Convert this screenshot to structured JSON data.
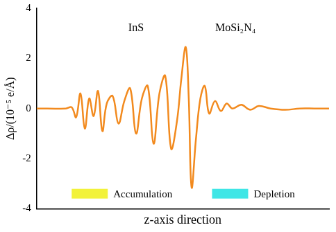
{
  "chart_data": {
    "type": "line",
    "y_label": "Δρ/(10⁻⁵ e/Å)",
    "x_label": "z-axis direction",
    "annotations": [
      {
        "text": "InS"
      },
      {
        "text": "MoSi₂N₄"
      }
    ],
    "key": [
      {
        "label": "Accumulation",
        "color": "#f2f23a"
      },
      {
        "label": "Depletion",
        "color": "#3fe6e6"
      }
    ],
    "series": [
      {
        "name": "Δρ",
        "color": "#f28a1e",
        "x": [
          0,
          10,
          12,
          13.5,
          15,
          16.5,
          18,
          19.5,
          21,
          22.5,
          24,
          26,
          28,
          30,
          32,
          34,
          36,
          38,
          40,
          42,
          44,
          46,
          48,
          49.5,
          51,
          52,
          53,
          54.5,
          56,
          57.5,
          59,
          61,
          63,
          65,
          67,
          70,
          73,
          76,
          80,
          85,
          90,
          95,
          100
        ],
        "values": [
          0,
          0,
          0.05,
          -0.35,
          0.6,
          -0.8,
          0.4,
          -0.3,
          0.7,
          -0.9,
          0.2,
          0.5,
          -0.6,
          0.3,
          0.8,
          -1.0,
          0.4,
          0.9,
          -1.4,
          0.6,
          1.3,
          -1.6,
          -0.5,
          1.2,
          2.45,
          0.5,
          -3.15,
          -1.2,
          0.4,
          0.9,
          -0.2,
          0.3,
          -0.1,
          0.2,
          0,
          0.15,
          -0.05,
          0.1,
          0,
          -0.05,
          0,
          0,
          0
        ]
      }
    ],
    "xlim": [
      0,
      100
    ],
    "ylim": [
      -4,
      4
    ],
    "yticks": [
      -4,
      -2,
      0,
      2,
      4
    ],
    "grid": false,
    "tick_labels": "y"
  }
}
